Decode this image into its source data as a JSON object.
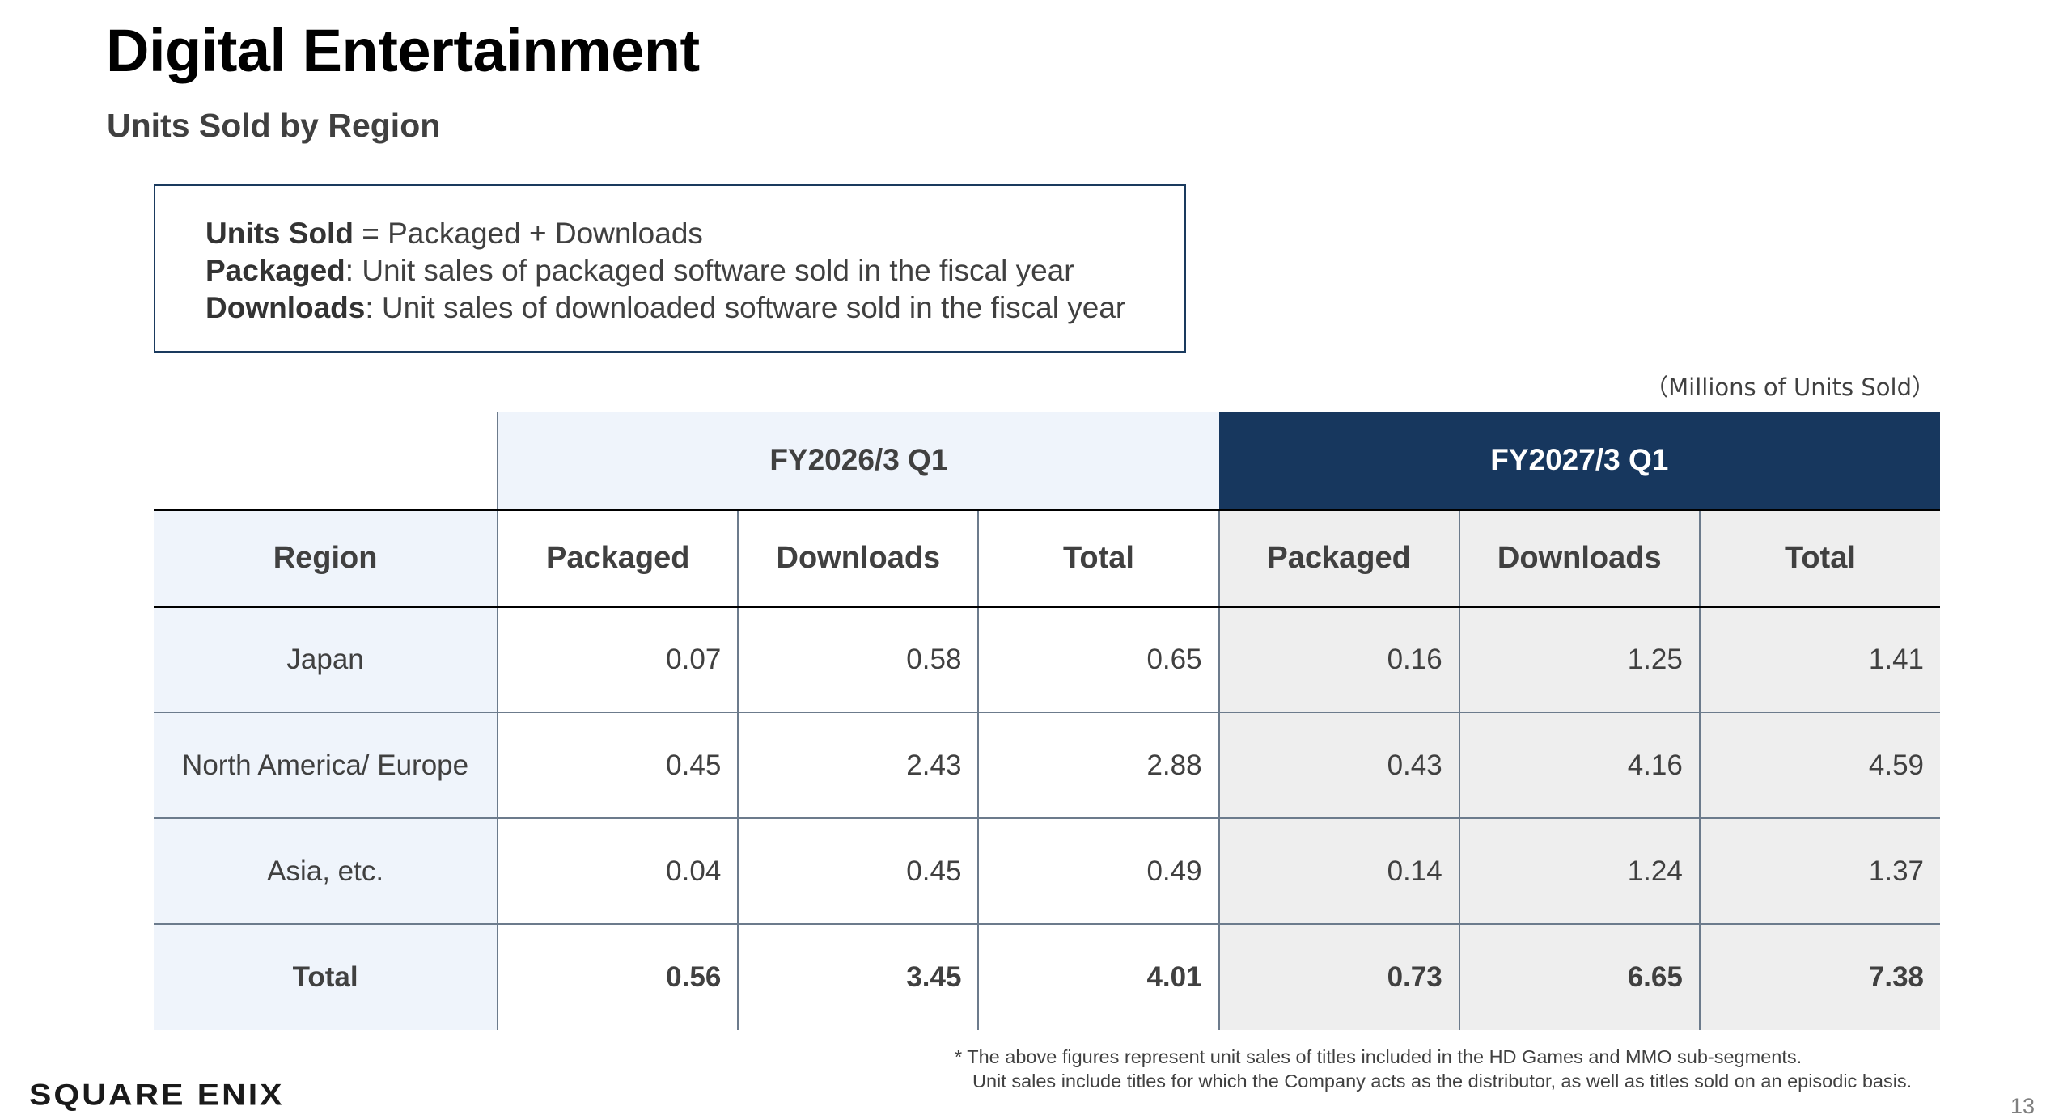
{
  "header": {
    "title": "Digital Entertainment",
    "subtitle": "Units Sold by Region"
  },
  "definitions": [
    {
      "term": "Units Sold",
      "text": " = Packaged + Downloads"
    },
    {
      "term": "Packaged",
      "text": ": Unit sales of packaged software sold in the fiscal year"
    },
    {
      "term": "Downloads",
      "text": ": Unit sales of downloaded software sold in the fiscal year"
    }
  ],
  "unit_note": "（Millions of Units Sold）",
  "table": {
    "periods": [
      "FY2026/3 Q1",
      "FY2027/3 Q1"
    ],
    "columns": [
      "Region",
      "Packaged",
      "Downloads",
      "Total",
      "Packaged",
      "Downloads",
      "Total"
    ],
    "rows": [
      {
        "region": "Japan",
        "values": [
          "0.07",
          "0.58",
          "0.65",
          "0.16",
          "1.25",
          "1.41"
        ]
      },
      {
        "region": "North America/ Europe",
        "values": [
          "0.45",
          "2.43",
          "2.88",
          "0.43",
          "4.16",
          "4.59"
        ]
      },
      {
        "region": "Asia, etc.",
        "values": [
          "0.04",
          "0.45",
          "0.49",
          "0.14",
          "1.24",
          "1.37"
        ]
      },
      {
        "region": "Total",
        "values": [
          "0.56",
          "3.45",
          "4.01",
          "0.73",
          "6.65",
          "7.38"
        ]
      }
    ],
    "colors": {
      "fy26_header_bg": "#eff4fb",
      "fy27_header_bg": "#17375e",
      "fy27_cell_bg": "#eeeeee"
    }
  },
  "footnote": {
    "line1": "* The above figures represent unit sales of titles included in the HD Games and MMO sub-segments.",
    "line2": "Unit sales include titles for which the Company acts as the distributor, as well as titles sold on an episodic basis."
  },
  "footer": {
    "logo": "SQUARE ENIX",
    "page_number": "13"
  }
}
